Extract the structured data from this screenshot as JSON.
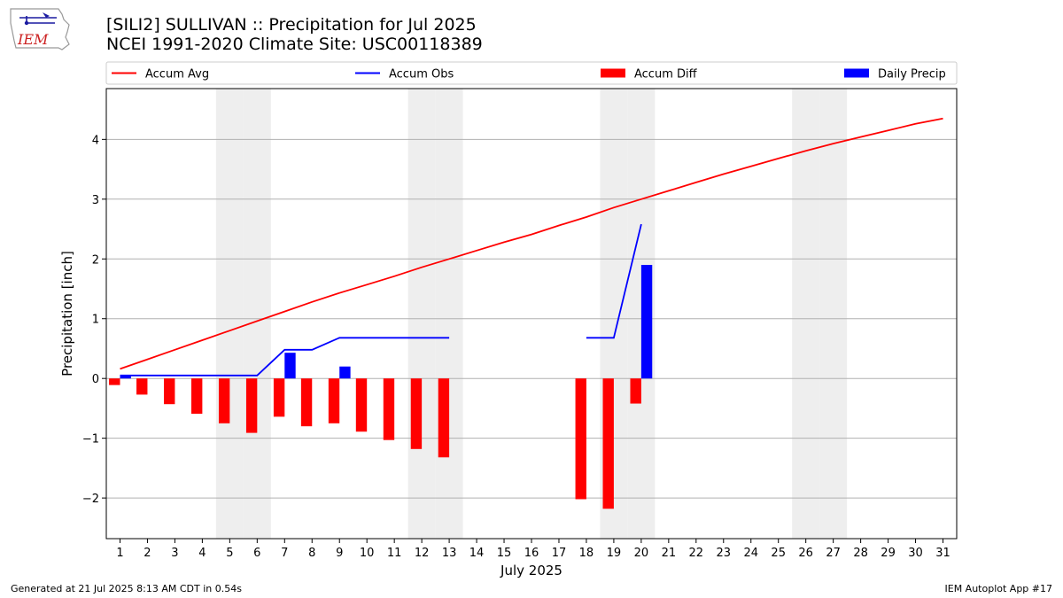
{
  "header": {
    "title_line1": "[SILI2] SULLIVAN :: Precipitation for Jul 2025",
    "title_line2": "NCEI 1991-2020 Climate Site: USC00118389"
  },
  "logo": {
    "text": "IEM",
    "icon": "iowa-state-outline-icon"
  },
  "footer": {
    "left": "Generated at 21 Jul 2025 8:13 AM CDT in 0.54s",
    "right": "IEM Autoplot App #17"
  },
  "chart_data": {
    "type": "bar",
    "xlabel": "July 2025",
    "ylabel": "Precipitation [inch]",
    "xlim": [
      0.5,
      31.5
    ],
    "ylim": [
      -2.68,
      4.85
    ],
    "yticks": [
      -2,
      -1,
      0,
      1,
      2,
      3,
      4
    ],
    "ytick_labels": [
      "−2",
      "−1",
      "0",
      "1",
      "2",
      "3",
      "4"
    ],
    "days": [
      1,
      2,
      3,
      4,
      5,
      6,
      7,
      8,
      9,
      10,
      11,
      12,
      13,
      14,
      15,
      16,
      17,
      18,
      19,
      20,
      21,
      22,
      23,
      24,
      25,
      26,
      27,
      28,
      29,
      30,
      31
    ],
    "weekend_days": [
      5,
      6,
      12,
      13,
      19,
      20,
      26,
      27
    ],
    "grid": "horizontal",
    "legend_position": "top",
    "colors": {
      "accum_avg": "#ff0000",
      "accum_obs": "#0000ff",
      "accum_diff": "#ff0000",
      "daily_precip": "#0000ff",
      "weekend_shade": "#eeeeee",
      "grid": "#b0b0b0"
    },
    "series": [
      {
        "name": "Accum Avg",
        "kind": "line",
        "color": "#ff0000",
        "values": [
          0.16,
          0.32,
          0.48,
          0.64,
          0.8,
          0.96,
          1.12,
          1.28,
          1.43,
          1.57,
          1.71,
          1.86,
          2.0,
          2.14,
          2.28,
          2.41,
          2.56,
          2.7,
          2.86,
          3.0,
          3.14,
          3.28,
          3.42,
          3.55,
          3.68,
          3.81,
          3.93,
          4.04,
          4.15,
          4.26,
          4.35
        ]
      },
      {
        "name": "Accum Obs",
        "kind": "line",
        "color": "#0000ff",
        "values": [
          0.05,
          0.05,
          0.05,
          0.05,
          0.05,
          0.05,
          0.48,
          0.48,
          0.68,
          0.68,
          0.68,
          0.68,
          0.68,
          null,
          null,
          null,
          null,
          0.68,
          0.68,
          2.58,
          null,
          null,
          null,
          null,
          null,
          null,
          null,
          null,
          null,
          null,
          null
        ]
      },
      {
        "name": "Accum Diff",
        "kind": "bar",
        "color": "#ff0000",
        "values": [
          -0.11,
          -0.27,
          -0.43,
          -0.59,
          -0.75,
          -0.91,
          -0.64,
          -0.8,
          -0.75,
          -0.89,
          -1.03,
          -1.18,
          -1.32,
          null,
          null,
          null,
          null,
          -2.02,
          -2.18,
          -0.42,
          null,
          null,
          null,
          null,
          null,
          null,
          null,
          null,
          null,
          null,
          null
        ]
      },
      {
        "name": "Daily Precip",
        "kind": "bar",
        "color": "#0000ff",
        "values": [
          0.05,
          0,
          0,
          0,
          0,
          0,
          0.43,
          0,
          0.2,
          0,
          0,
          0,
          0,
          null,
          null,
          null,
          null,
          0,
          0,
          1.9,
          null,
          null,
          null,
          null,
          null,
          null,
          null,
          null,
          null,
          null,
          null
        ]
      }
    ]
  }
}
